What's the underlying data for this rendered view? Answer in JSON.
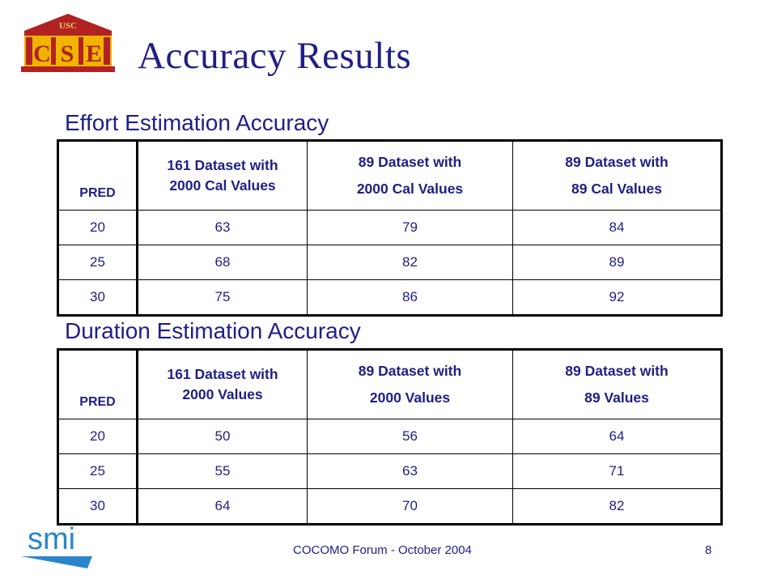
{
  "logo": {
    "top_text": "USC",
    "letters": [
      "C",
      "S",
      "E"
    ]
  },
  "title": "Accuracy Results",
  "effort": {
    "heading": "Effort Estimation Accuracy",
    "headers": [
      {
        "lines": [
          "PRED"
        ]
      },
      {
        "lines": [
          "161 Dataset with",
          "2000 Cal Values"
        ]
      },
      {
        "lines": [
          "89 Dataset with",
          "2000  Cal Values"
        ]
      },
      {
        "lines": [
          "89 Dataset with",
          "89 Cal Values"
        ]
      }
    ],
    "rows": [
      [
        "20",
        "63",
        "79",
        "84"
      ],
      [
        "25",
        "68",
        "82",
        "89"
      ],
      [
        "30",
        "75",
        "86",
        "92"
      ]
    ]
  },
  "duration": {
    "heading": "Duration Estimation Accuracy",
    "headers": [
      {
        "lines": [
          "PRED"
        ]
      },
      {
        "lines": [
          "161 Dataset with",
          "2000 Values"
        ]
      },
      {
        "lines": [
          "89 Dataset with",
          "2000 Values"
        ]
      },
      {
        "lines": [
          "89 Dataset with",
          "89 Values"
        ]
      }
    ],
    "rows": [
      [
        "20",
        "50",
        "56",
        "64"
      ],
      [
        "25",
        "55",
        "63",
        "71"
      ],
      [
        "30",
        "64",
        "70",
        "82"
      ]
    ]
  },
  "footer": {
    "logo_text": "smi",
    "text": "COCOMO Forum - October 2004",
    "page": "8"
  },
  "colors": {
    "text": "#1f1f86",
    "logo_red": "#b22222",
    "logo_gold": "#f0b400",
    "smi_blue": "#2a86c8"
  }
}
